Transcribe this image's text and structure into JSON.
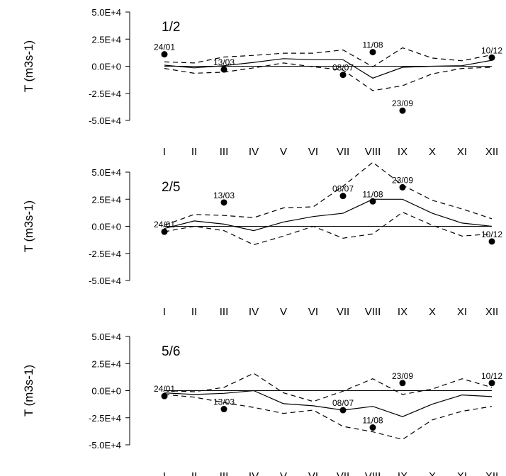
{
  "chart_data": [
    {
      "type": "line",
      "panel_label": "1/2",
      "ylabel": "T (m3s-1)",
      "ylim": [
        -50000,
        50000
      ],
      "yticks": [
        "5.0E+4",
        "2.5E+4",
        "0.0E+0",
        "-2.5E+4",
        "-5.0E+4"
      ],
      "ytick_values": [
        50000,
        25000,
        0,
        -25000,
        -50000
      ],
      "categories": [
        "I",
        "II",
        "III",
        "IV",
        "V",
        "VI",
        "VII",
        "VIII",
        "IX",
        "X",
        "XI",
        "XII"
      ],
      "series": [
        {
          "style": "solid",
          "values": [
            1000,
            -1500,
            500,
            3500,
            7000,
            6000,
            6000,
            -11000,
            -1000,
            0,
            500,
            5500
          ]
        },
        {
          "style": "dashed",
          "values": [
            4000,
            3000,
            8500,
            10000,
            12000,
            12000,
            15000,
            -500,
            17000,
            7500,
            5000,
            10500
          ]
        },
        {
          "style": "dashed",
          "values": [
            -2000,
            -6500,
            -5500,
            -1500,
            3000,
            -500,
            -3500,
            -22500,
            -18000,
            -7000,
            -2000,
            -1000
          ]
        }
      ],
      "zero_line": true,
      "events": [
        {
          "label": "24/01",
          "month": 1,
          "value": 11000
        },
        {
          "label": "13/03",
          "month": 3,
          "value": -3000
        },
        {
          "label": "08/07",
          "month": 7,
          "value": -8000
        },
        {
          "label": "11/08",
          "month": 8,
          "value": 13000
        },
        {
          "label": "23/09",
          "month": 9,
          "value": -41000
        },
        {
          "label": "10/12",
          "month": 12,
          "value": 8000
        }
      ]
    },
    {
      "type": "line",
      "panel_label": "2/5",
      "ylabel": "T (m3s-1)",
      "ylim": [
        -50000,
        50000
      ],
      "yticks": [
        "5.0E+4",
        "2.5E+4",
        "0.0E+0",
        "-2.5E+4",
        "-5.0E+4"
      ],
      "ytick_values": [
        50000,
        25000,
        0,
        -25000,
        -50000
      ],
      "categories": [
        "I",
        "II",
        "III",
        "IV",
        "V",
        "VI",
        "VII",
        "VIII",
        "IX",
        "X",
        "XI",
        "XII"
      ],
      "series": [
        {
          "style": "solid",
          "values": [
            -2000,
            5000,
            2000,
            -4000,
            4000,
            9000,
            12000,
            25000,
            25000,
            12000,
            3000,
            0
          ]
        },
        {
          "style": "dashed",
          "values": [
            1000,
            11000,
            10000,
            8000,
            17000,
            18000,
            37000,
            59000,
            38000,
            24000,
            16000,
            7000
          ]
        },
        {
          "style": "dashed",
          "values": [
            -5000,
            0,
            -4000,
            -17000,
            -9000,
            0,
            -11000,
            -7000,
            13000,
            1000,
            -9000,
            -7000
          ]
        }
      ],
      "zero_line": true,
      "events": [
        {
          "label": "24/01",
          "month": 1,
          "value": -5000
        },
        {
          "label": "13/03",
          "month": 3,
          "value": 22000
        },
        {
          "label": "08/07",
          "month": 7,
          "value": 28000
        },
        {
          "label": "11/08",
          "month": 8,
          "value": 23000
        },
        {
          "label": "23/09",
          "month": 9,
          "value": 36000
        },
        {
          "label": "10/12",
          "month": 12,
          "value": -14000
        }
      ]
    },
    {
      "type": "line",
      "panel_label": "5/6",
      "ylabel": "T (m3s-1)",
      "ylim": [
        -50000,
        50000
      ],
      "yticks": [
        "5.0E+4",
        "2.5E+4",
        "0.0E+0",
        "-2.5E+4",
        "-5.0E+4"
      ],
      "ytick_values": [
        50000,
        25000,
        0,
        -25000,
        -50000
      ],
      "categories": [
        "I",
        "II",
        "III",
        "IV",
        "V",
        "VI",
        "VII",
        "VIII",
        "IX",
        "X",
        "XI",
        "XII"
      ],
      "series": [
        {
          "style": "solid",
          "values": [
            -2000,
            -3500,
            -2500,
            0,
            -12000,
            -14000,
            -18000,
            -14500,
            -24000,
            -12500,
            -4000,
            -5500
          ]
        },
        {
          "style": "dashed",
          "values": [
            0,
            -1000,
            3000,
            16000,
            -2000,
            -10000,
            -500,
            11000,
            -3500,
            1500,
            11000,
            3000
          ]
        },
        {
          "style": "dashed",
          "values": [
            -3500,
            -6000,
            -11000,
            -15500,
            -21000,
            -18000,
            -33000,
            -38000,
            -45000,
            -27000,
            -19000,
            -14500
          ]
        }
      ],
      "zero_line": true,
      "events": [
        {
          "label": "24/01",
          "month": 1,
          "value": -5000
        },
        {
          "label": "13/03",
          "month": 3,
          "value": -17000
        },
        {
          "label": "08/07",
          "month": 7,
          "value": -18000
        },
        {
          "label": "11/08",
          "month": 8,
          "value": -34000
        },
        {
          "label": "23/09",
          "month": 9,
          "value": 7000
        },
        {
          "label": "10/12",
          "month": 12,
          "value": 7000
        }
      ]
    }
  ]
}
